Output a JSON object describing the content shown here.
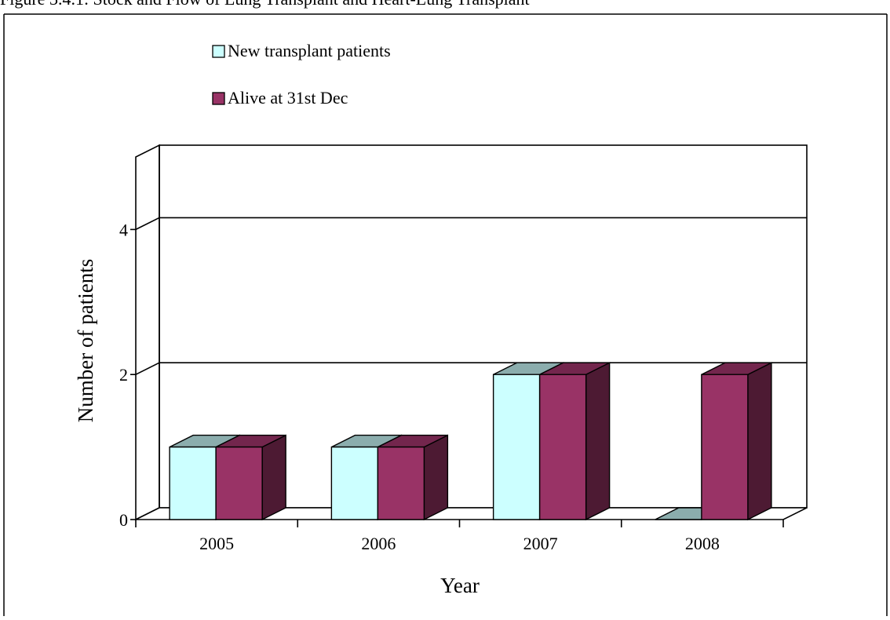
{
  "page": {
    "caption": "Figure 3.4.1: Stock and Flow of Lung Transplant and Heart-Lung Transplant"
  },
  "chart_data": {
    "type": "bar",
    "categories": [
      "2005",
      "2006",
      "2007",
      "2008"
    ],
    "series": [
      {
        "name": "New transplant patients",
        "values": [
          1,
          1,
          2,
          0
        ],
        "color": "#ccffff"
      },
      {
        "name": "Alive at 31st Dec",
        "values": [
          1,
          1,
          2,
          2
        ],
        "color": "#993366"
      }
    ],
    "title": "",
    "xlabel": "Year",
    "ylabel": "Number of patients",
    "ylim": [
      0,
      5
    ],
    "yticks": [
      0,
      2,
      4
    ],
    "gridlines": [
      2,
      4
    ],
    "grid": true,
    "legend": "top-left",
    "three_d": true
  }
}
